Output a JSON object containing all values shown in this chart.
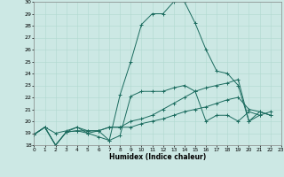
{
  "xlabel": "Humidex (Indice chaleur)",
  "bg_color": "#cce8e4",
  "line_color": "#1a6b5e",
  "grid_color": "#b0d8d0",
  "ylim": [
    18,
    30
  ],
  "xlim": [
    0,
    23
  ],
  "series": [
    [
      0,
      18.9,
      1,
      19.5,
      2,
      18.0,
      3,
      19.1,
      4,
      19.5,
      5,
      19.0,
      6,
      18.7,
      7,
      18.4,
      8,
      18.8,
      9,
      22.1,
      10,
      22.5,
      11,
      22.5,
      12,
      22.5,
      13,
      22.8,
      14,
      23.0,
      15,
      22.5,
      16,
      20.0,
      17,
      20.5,
      18,
      20.5,
      19,
      20.0,
      20,
      20.8,
      21,
      20.5
    ],
    [
      0,
      18.9,
      1,
      19.5,
      2,
      18.0,
      3,
      19.1,
      4,
      19.2,
      5,
      19.2,
      6,
      19.2,
      7,
      19.5,
      8,
      19.5,
      9,
      19.5,
      10,
      19.8,
      11,
      20.0,
      12,
      20.2,
      13,
      20.5,
      14,
      20.8,
      15,
      21.0,
      16,
      21.2,
      17,
      21.5,
      18,
      21.8,
      19,
      22.0,
      20,
      21.0,
      21,
      20.8,
      22,
      20.5
    ],
    [
      0,
      18.9,
      1,
      19.5,
      2,
      19.0,
      3,
      19.2,
      4,
      19.5,
      5,
      19.2,
      6,
      19.2,
      7,
      19.5,
      8,
      19.5,
      9,
      20.0,
      10,
      20.2,
      11,
      20.5,
      12,
      21.0,
      13,
      21.5,
      14,
      22.0,
      15,
      22.5,
      16,
      22.8,
      17,
      23.0,
      18,
      23.2,
      19,
      23.5,
      20,
      20.0,
      21,
      20.5,
      22,
      20.8
    ],
    [
      0,
      18.9,
      1,
      19.5,
      2,
      18.0,
      3,
      19.1,
      4,
      19.2,
      5,
      19.0,
      6,
      19.2,
      7,
      18.4,
      8,
      22.2,
      9,
      25.0,
      10,
      28.1,
      11,
      29.0,
      12,
      29.0,
      13,
      30.0,
      14,
      30.0,
      15,
      28.2,
      16,
      26.0,
      17,
      24.2,
      18,
      24.0,
      19,
      23.0,
      20,
      20.0,
      21,
      20.8,
      22,
      20.5
    ]
  ],
  "x_ticks": [
    0,
    1,
    2,
    3,
    4,
    5,
    6,
    7,
    8,
    9,
    10,
    11,
    12,
    13,
    14,
    15,
    16,
    17,
    18,
    19,
    20,
    21,
    22,
    23
  ],
  "y_ticks": [
    18,
    19,
    20,
    21,
    22,
    23,
    24,
    25,
    26,
    27,
    28,
    29,
    30
  ]
}
